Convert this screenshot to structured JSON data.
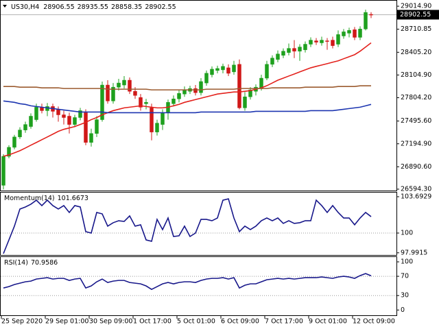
{
  "chart_data": [
    {
      "type": "candlestick",
      "title": "US30,H4",
      "categories": [
        "25 Sep 2020",
        null,
        null,
        null,
        null,
        null,
        null,
        null,
        "29 Sep 01:00",
        null,
        null,
        null,
        null,
        null,
        null,
        null,
        "30 Sep 09:00",
        null,
        null,
        null,
        null,
        null,
        null,
        null,
        "1 Oct 17:00",
        null,
        null,
        null,
        null,
        null,
        null,
        null,
        "5 Oct 01:00",
        null,
        null,
        null,
        null,
        null,
        null,
        null,
        "6 Oct 09:00",
        null,
        null,
        null,
        null,
        null,
        null,
        null,
        "7 Oct 17:00",
        null,
        null,
        null,
        null,
        null,
        null,
        null,
        "9 Oct 01:00",
        null,
        null,
        null,
        null,
        null,
        null,
        null,
        "12 Oct 09:00",
        null,
        null,
        null
      ],
      "open": [
        26645,
        27029,
        27148,
        27285,
        27377,
        27423,
        27514,
        27679,
        27633,
        27688,
        27651,
        27578,
        27560,
        27450,
        27542,
        27606,
        27212,
        27331,
        27514,
        27972,
        27761,
        27944,
        27972,
        28036,
        27889,
        27807,
        27725,
        27670,
        27350,
        27450,
        27606,
        27725,
        27789,
        27853,
        27889,
        27926,
        27871,
        27999,
        28109,
        28164,
        28173,
        28200,
        28146,
        28246,
        27670,
        27816,
        27889,
        27926,
        28063,
        28246,
        28310,
        28365,
        28402,
        28457,
        28420,
        28438,
        28512,
        28557,
        28530,
        28557,
        28566,
        28512,
        28621,
        28658,
        28704,
        28603,
        28713,
        28906.55
      ],
      "high": [
        27057,
        27176,
        27313,
        27414,
        27487,
        27597,
        27725,
        27725,
        27734,
        27725,
        27688,
        27633,
        27606,
        27578,
        27670,
        27651,
        27395,
        27560,
        28018,
        28036,
        27999,
        28054,
        28091,
        28072,
        27944,
        27853,
        27789,
        27725,
        27514,
        27651,
        27780,
        27834,
        27908,
        27953,
        27962,
        27972,
        28063,
        28164,
        28219,
        28228,
        28255,
        28246,
        28292,
        28310,
        27880,
        27944,
        27981,
        28109,
        28292,
        28365,
        28429,
        28457,
        28521,
        28566,
        28512,
        28548,
        28603,
        28594,
        28612,
        28594,
        28612,
        28695,
        28713,
        28731,
        28740,
        28749,
        28969,
        28935.55
      ],
      "low": [
        26590,
        27002,
        27121,
        27258,
        27340,
        27395,
        27487,
        27597,
        27560,
        27542,
        27487,
        27450,
        27331,
        27414,
        27505,
        27176,
        27157,
        27285,
        27487,
        27725,
        27725,
        27899,
        27926,
        27853,
        27789,
        27633,
        27651,
        27240,
        27304,
        27377,
        27514,
        27688,
        27743,
        27816,
        27853,
        27834,
        27834,
        27962,
        28073,
        28127,
        28127,
        28091,
        28109,
        27651,
        27633,
        27780,
        27834,
        27899,
        28036,
        28210,
        28274,
        28329,
        28365,
        28329,
        28292,
        28402,
        28475,
        28502,
        28493,
        28438,
        28457,
        28475,
        28585,
        28603,
        28566,
        28566,
        28695,
        28858.35
      ],
      "close": [
        27029,
        27148,
        27285,
        27377,
        27450,
        27560,
        27679,
        27633,
        27688,
        27624,
        27578,
        27542,
        27450,
        27542,
        27633,
        27212,
        27331,
        27514,
        27972,
        27761,
        27944,
        27999,
        28036,
        27889,
        27834,
        27679,
        27743,
        27350,
        27468,
        27606,
        27743,
        27789,
        27862,
        27908,
        27926,
        27871,
        28018,
        28128,
        28182,
        28191,
        28219,
        28127,
        28237,
        27670,
        27816,
        27908,
        27944,
        28063,
        28246,
        28329,
        28383,
        28420,
        28457,
        28420,
        28475,
        28512,
        28566,
        28539,
        28566,
        28548,
        28493,
        28640,
        28676,
        28695,
        28603,
        28713,
        28933,
        28902.55
      ],
      "up_color": "#1ea01e",
      "down_color": "#d01818",
      "lines": [
        {
          "color": "#e3201b",
          "values": [
            27029,
            27048,
            27075,
            27103,
            27139,
            27176,
            27212,
            27249,
            27285,
            27322,
            27359,
            27386,
            27404,
            27423,
            27450,
            27478,
            27514,
            27542,
            27578,
            27606,
            27633,
            27651,
            27670,
            27679,
            27688,
            27697,
            27688,
            27679,
            27670,
            27670,
            27679,
            27697,
            27716,
            27743,
            27761,
            27780,
            27798,
            27816,
            27834,
            27853,
            27862,
            27871,
            27880,
            27880,
            27889,
            27898,
            27917,
            27935,
            27963,
            27999,
            28036,
            28063,
            28091,
            28118,
            28146,
            28173,
            28200,
            28219,
            28237,
            28255,
            28274,
            28292,
            28320,
            28347,
            28374,
            28420,
            28475,
            28530
          ]
        },
        {
          "color": "#9b5a2e",
          "values": [
            27953,
            27953,
            27953,
            27944,
            27944,
            27944,
            27944,
            27935,
            27935,
            27935,
            27935,
            27926,
            27926,
            27926,
            27926,
            27926,
            27926,
            27926,
            27926,
            27917,
            27917,
            27917,
            27917,
            27917,
            27917,
            27917,
            27917,
            27908,
            27908,
            27908,
            27908,
            27908,
            27908,
            27908,
            27908,
            27908,
            27908,
            27917,
            27917,
            27917,
            27917,
            27917,
            27917,
            27926,
            27926,
            27926,
            27926,
            27926,
            27926,
            27935,
            27935,
            27935,
            27935,
            27935,
            27935,
            27944,
            27944,
            27944,
            27944,
            27944,
            27944,
            27953,
            27953,
            27953,
            27953,
            27962,
            27962,
            27962
          ]
        },
        {
          "color": "#1c35b0",
          "values": [
            27761,
            27752,
            27743,
            27725,
            27716,
            27697,
            27688,
            27679,
            27670,
            27661,
            27651,
            27642,
            27633,
            27624,
            27615,
            27615,
            27615,
            27615,
            27615,
            27606,
            27606,
            27606,
            27606,
            27606,
            27606,
            27606,
            27606,
            27606,
            27606,
            27606,
            27606,
            27606,
            27606,
            27606,
            27606,
            27606,
            27615,
            27615,
            27615,
            27615,
            27615,
            27615,
            27615,
            27615,
            27615,
            27615,
            27624,
            27624,
            27624,
            27624,
            27624,
            27624,
            27624,
            27624,
            27624,
            27624,
            27633,
            27633,
            27633,
            27633,
            27633,
            27642,
            27651,
            27661,
            27670,
            27679,
            27697,
            27716
          ]
        }
      ],
      "ylim": [
        26576,
        29088
      ],
      "yticks": [
        {
          "value": 29014.9,
          "label": "29014.90"
        },
        28710.85,
        {
          "value": 28405.2,
          "label": "28405.20"
        },
        {
          "value": 28104.9,
          "label": "28104.90"
        },
        {
          "value": 27804.2,
          "label": "27804.20"
        },
        {
          "value": 27495.6,
          "label": "27495.60"
        },
        {
          "value": 27194.9,
          "label": "27194.90"
        },
        {
          "value": 26890.6,
          "label": "26890.60"
        },
        {
          "value": 26594.3,
          "label": "26594.30"
        }
      ]
    },
    {
      "type": "line",
      "title": "Momentum(14)",
      "color": "#17178a",
      "values": [
        97.91,
        99.3,
        100.7,
        102.44,
        102.65,
        102.93,
        103.34,
        102.79,
        103.34,
        102.79,
        102.44,
        102.79,
        102.09,
        102.79,
        102.65,
        100.14,
        100,
        102.09,
        101.95,
        100.7,
        101.05,
        101.25,
        101.18,
        101.74,
        100.7,
        100.84,
        99.3,
        99.16,
        101.39,
        100.35,
        101.53,
        99.65,
        99.72,
        100.7,
        99.65,
        100,
        101.39,
        101.39,
        101.25,
        101.53,
        103.34,
        103.48,
        101.53,
        100.14,
        100.7,
        100.35,
        100.7,
        101.25,
        101.53,
        101.25,
        101.53,
        100.98,
        101.25,
        100.98,
        101.05,
        101.25,
        101.25,
        103.34,
        102.79,
        102.09,
        102.79,
        102.09,
        101.53,
        101.53,
        100.84,
        101.53,
        102.09,
        101.6673
      ],
      "ylim": [
        97.77,
        104.11
      ],
      "yticks": [
        103.6929,
        100,
        97.9915
      ],
      "levels": [
        100
      ]
    },
    {
      "type": "line",
      "title": "RSI(14)",
      "color": "#17178a",
      "values": [
        45.71,
        48.57,
        52.86,
        55.71,
        58.57,
        60,
        64.29,
        65.71,
        67.14,
        64.29,
        65.71,
        65.71,
        61.43,
        64.29,
        65.71,
        45.71,
        50,
        58.57,
        64.29,
        57.14,
        60,
        61.43,
        61.43,
        57.14,
        55.71,
        54.29,
        50,
        42.86,
        48.57,
        54.29,
        57.14,
        54.29,
        57.14,
        58.57,
        58.57,
        57.14,
        61.43,
        64.29,
        65.71,
        65.71,
        67.14,
        64.29,
        67.14,
        45.71,
        51.43,
        54.29,
        54.29,
        58.57,
        62.86,
        64.29,
        65.71,
        64.29,
        65.71,
        64.29,
        65.71,
        67.14,
        67.14,
        67.14,
        68.57,
        67.14,
        65.71,
        68.57,
        70,
        68.57,
        65.71,
        71.43,
        75.71,
        70.9586
      ],
      "ylim": [
        -11,
        110
      ],
      "yticks": [
        100,
        70,
        30,
        0
      ],
      "levels": [
        70,
        30
      ]
    }
  ]
}
